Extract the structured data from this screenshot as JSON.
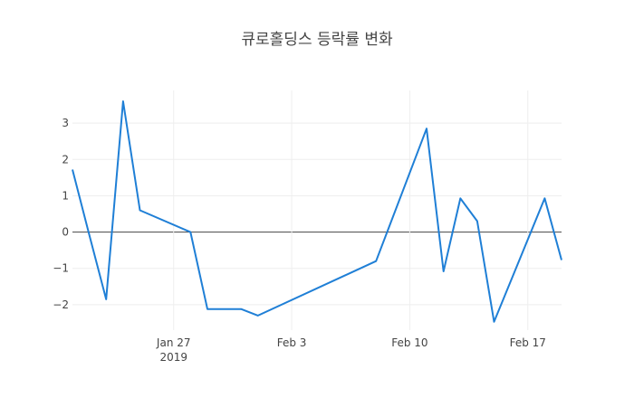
{
  "chart_data": {
    "type": "line",
    "title": "큐로홀딩스 등락률 변화",
    "xlabel": "",
    "ylabel": "",
    "x": [
      "2019-01-21",
      "2019-01-22",
      "2019-01-23",
      "2019-01-24",
      "2019-01-25",
      "2019-01-28",
      "2019-01-29",
      "2019-01-30",
      "2019-01-31",
      "2019-02-01",
      "2019-02-08",
      "2019-02-11",
      "2019-02-12",
      "2019-02-13",
      "2019-02-14",
      "2019-02-15",
      "2019-02-18",
      "2019-02-19"
    ],
    "series": [
      {
        "values": [
          1.72,
          -0.08,
          -1.85,
          3.6,
          0.6,
          0.0,
          -2.12,
          -2.12,
          -2.12,
          -2.3,
          -0.8,
          2.85,
          -1.08,
          0.93,
          0.3,
          -2.47,
          0.93,
          -0.77
        ]
      }
    ],
    "xlim": [
      "2019-01-21",
      "2019-02-19"
    ],
    "ylim": [
      -2.7,
      3.9
    ],
    "x_ticks": [
      {
        "date": "2019-01-27",
        "label": "Jan 27",
        "sublabel": "2019"
      },
      {
        "date": "2019-02-03",
        "label": "Feb 3",
        "sublabel": ""
      },
      {
        "date": "2019-02-10",
        "label": "Feb 10",
        "sublabel": ""
      },
      {
        "date": "2019-02-17",
        "label": "Feb 17",
        "sublabel": ""
      }
    ],
    "y_ticks": [
      {
        "value": 3,
        "label": "3"
      },
      {
        "value": 2,
        "label": "2"
      },
      {
        "value": 1,
        "label": "1"
      },
      {
        "value": 0,
        "label": "0"
      },
      {
        "value": -1,
        "label": "−1"
      },
      {
        "value": -2,
        "label": "−2"
      }
    ],
    "grid": true,
    "legend": "none",
    "line_color": "#1f7fd6"
  }
}
